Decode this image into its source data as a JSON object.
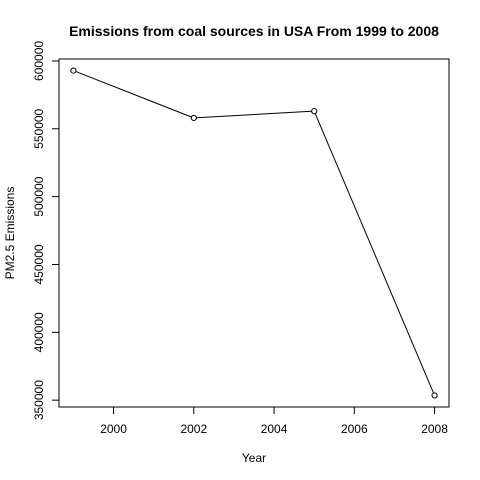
{
  "chart_data": {
    "type": "line",
    "title": "Emissions from coal sources in USA From 1999 to 2008",
    "xlabel": "Year",
    "ylabel": "PM2.5 Emissions",
    "x": [
      1999,
      2002,
      2005,
      2008
    ],
    "y": [
      592900,
      558000,
      563000,
      353500
    ],
    "xlim": [
      1998.64,
      2008.36
    ],
    "ylim": [
      344960,
      601440
    ],
    "xticks": [
      2000,
      2002,
      2004,
      2006,
      2008
    ],
    "yticks": [
      350000,
      400000,
      450000,
      500000,
      550000,
      600000
    ],
    "xtick_labels": [
      "2000",
      "2002",
      "2004",
      "2006",
      "2008"
    ],
    "ytick_labels": [
      "350000",
      "400000",
      "450000",
      "500000",
      "550000",
      "600000"
    ],
    "markers": "open-circle",
    "grid": false,
    "legend": false
  }
}
